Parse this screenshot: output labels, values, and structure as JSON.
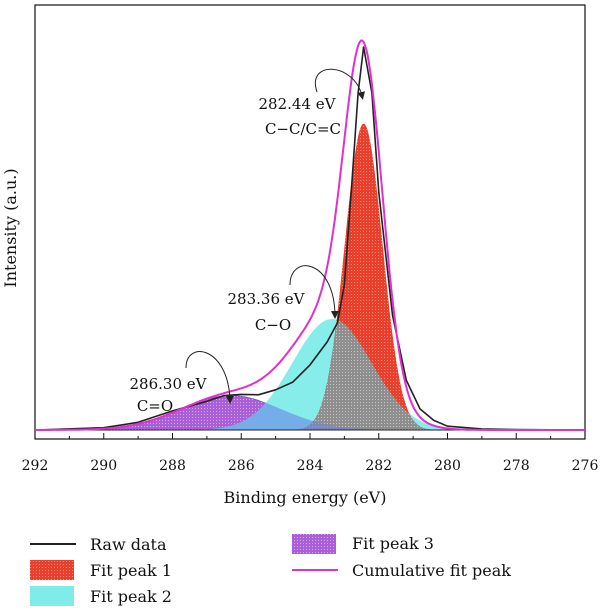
{
  "chart_data": {
    "type": "line",
    "xlabel": "Binding energy (eV)",
    "ylabel": "Intensity (a.u.)",
    "xlim": [
      292,
      276
    ],
    "ylim": [
      0,
      100
    ],
    "x_ticks": [
      "292",
      "290",
      "288",
      "286",
      "284",
      "282",
      "280",
      "278",
      "276"
    ],
    "x_tick_values": [
      292,
      290,
      288,
      286,
      284,
      282,
      280,
      278,
      276
    ],
    "grid": false,
    "legend_position": "bottom",
    "series": [
      {
        "name": "Raw data",
        "type": "line",
        "color": "#222222",
        "x": [
          292.0,
          290.0,
          289.0,
          288.0,
          287.0,
          286.5,
          286.0,
          285.5,
          285.0,
          284.5,
          284.0,
          283.5,
          283.2,
          283.0,
          282.8,
          282.6,
          282.44,
          282.2,
          282.0,
          281.6,
          281.2,
          280.8,
          280.4,
          280.0,
          279.0,
          278.0,
          276.0
        ],
        "y": [
          0.0,
          0.6,
          2.0,
          5.0,
          7.5,
          9.0,
          9.3,
          9.2,
          10.5,
          12.5,
          17.0,
          23.0,
          28.0,
          38.0,
          62.0,
          88.0,
          100.0,
          88.0,
          62.0,
          30.0,
          13.0,
          5.5,
          2.5,
          1.0,
          0.3,
          0.1,
          0.0
        ]
      },
      {
        "name": "Fit peak 1",
        "type": "area",
        "color": "#e8402c",
        "center": 282.44,
        "height": 80,
        "width": 0.55
      },
      {
        "name": "Fit peak 2",
        "type": "area",
        "color": "#7fecea",
        "center": 283.36,
        "height": 29,
        "width": 1.15
      },
      {
        "name": "Fit peak 3",
        "type": "area",
        "color": "#b76be0",
        "center": 286.3,
        "height": 9,
        "width": 1.45
      },
      {
        "name": "Cumulative fit peak",
        "type": "line",
        "color": "#e030d0"
      }
    ],
    "overlap_color": "#9e9e9e",
    "annotations": [
      {
        "energy": "282.44 eV",
        "assign": "C−C/C=C",
        "x": 282.44,
        "y": 97
      },
      {
        "energy": "283.36 eV",
        "assign": "C−O",
        "x": 283.36,
        "y": 29.5
      },
      {
        "energy": "286.30 eV",
        "assign": "C=O",
        "x": 286.3,
        "y": 9.5
      }
    ]
  }
}
